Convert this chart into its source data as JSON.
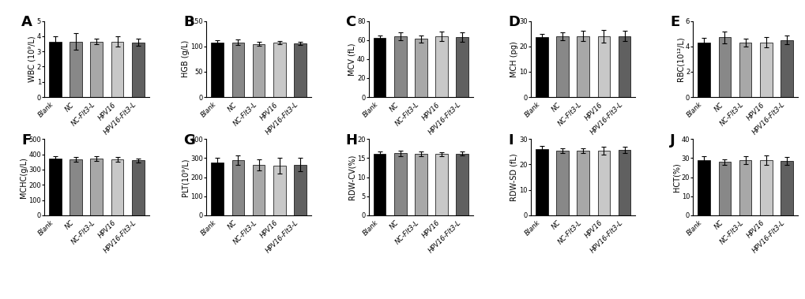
{
  "panels": [
    {
      "label": "A",
      "ylabel": "WBC (10⁹/L)",
      "ylim": [
        0,
        5
      ],
      "yticks": [
        0,
        1,
        2,
        3,
        4,
        5
      ],
      "values": [
        3.65,
        3.65,
        3.65,
        3.65,
        3.6
      ],
      "errors": [
        0.35,
        0.55,
        0.2,
        0.35,
        0.25
      ]
    },
    {
      "label": "B",
      "ylabel": "HGB (g/L)",
      "ylim": [
        0,
        150
      ],
      "yticks": [
        0,
        50,
        100,
        150
      ],
      "values": [
        107,
        108,
        105,
        107,
        106
      ],
      "errors": [
        5,
        5,
        4,
        3,
        3
      ]
    },
    {
      "label": "C",
      "ylabel": "MCV (fL)",
      "ylim": [
        0,
        80
      ],
      "yticks": [
        0,
        20,
        40,
        60,
        80
      ],
      "values": [
        62,
        64,
        61,
        64,
        63
      ],
      "errors": [
        3,
        4,
        4,
        5,
        5
      ]
    },
    {
      "label": "D",
      "ylabel": "MCH (pg)",
      "ylim": [
        0,
        30
      ],
      "yticks": [
        0,
        10,
        20,
        30
      ],
      "values": [
        23.5,
        24,
        24,
        24,
        24
      ],
      "errors": [
        1.5,
        1.5,
        2,
        2.5,
        2
      ]
    },
    {
      "label": "E",
      "ylabel": "RBC(10¹²/L)",
      "ylim": [
        0,
        6
      ],
      "yticks": [
        0,
        2,
        4,
        6
      ],
      "values": [
        4.3,
        4.7,
        4.3,
        4.3,
        4.5
      ],
      "errors": [
        0.35,
        0.45,
        0.3,
        0.4,
        0.35
      ]
    },
    {
      "label": "F",
      "ylabel": "MCHC(g/L)",
      "ylim": [
        0,
        500
      ],
      "yticks": [
        0,
        100,
        200,
        300,
        400,
        500
      ],
      "values": [
        370,
        365,
        370,
        368,
        360
      ],
      "errors": [
        18,
        15,
        15,
        15,
        12
      ]
    },
    {
      "label": "G",
      "ylabel": "PLT(10⁹/L)",
      "ylim": [
        0,
        400
      ],
      "yticks": [
        0,
        100,
        200,
        300,
        400
      ],
      "values": [
        278,
        290,
        265,
        260,
        265
      ],
      "errors": [
        25,
        25,
        30,
        40,
        35
      ]
    },
    {
      "label": "H",
      "ylabel": "RDW-CV(%)",
      "ylim": [
        0,
        20
      ],
      "yticks": [
        0,
        5,
        10,
        15,
        20
      ],
      "values": [
        16.2,
        16.3,
        16.2,
        16.1,
        16.2
      ],
      "errors": [
        0.6,
        0.7,
        0.6,
        0.5,
        0.5
      ]
    },
    {
      "label": "I",
      "ylabel": "RDW-SD (fL)",
      "ylim": [
        0,
        30
      ],
      "yticks": [
        0,
        10,
        20,
        30
      ],
      "values": [
        26,
        25.5,
        25.5,
        25.5,
        25.8
      ],
      "errors": [
        1.2,
        1.0,
        1.0,
        1.5,
        1.2
      ]
    },
    {
      "label": "J",
      "ylabel": "HCT(%)",
      "ylim": [
        0,
        40
      ],
      "yticks": [
        0,
        10,
        20,
        30,
        40
      ],
      "values": [
        29,
        28,
        29,
        29,
        28.5
      ],
      "errors": [
        2,
        1.5,
        2,
        2.5,
        2
      ]
    }
  ],
  "categories": [
    "Blank",
    "NC",
    "NC-Flt3-L",
    "HPV16",
    "HPV16-Flt3-L"
  ],
  "bar_colors": [
    "#000000",
    "#888888",
    "#a8a8a8",
    "#c8c8c8",
    "#606060"
  ],
  "bar_edge_color": "black",
  "bar_linewidth": 0.5,
  "error_color": "black",
  "error_capsize": 2,
  "error_linewidth": 0.8,
  "tick_fontsize": 6.0,
  "ylabel_fontsize": 7.0,
  "panel_label_fontsize": 13,
  "background_color": "#ffffff"
}
